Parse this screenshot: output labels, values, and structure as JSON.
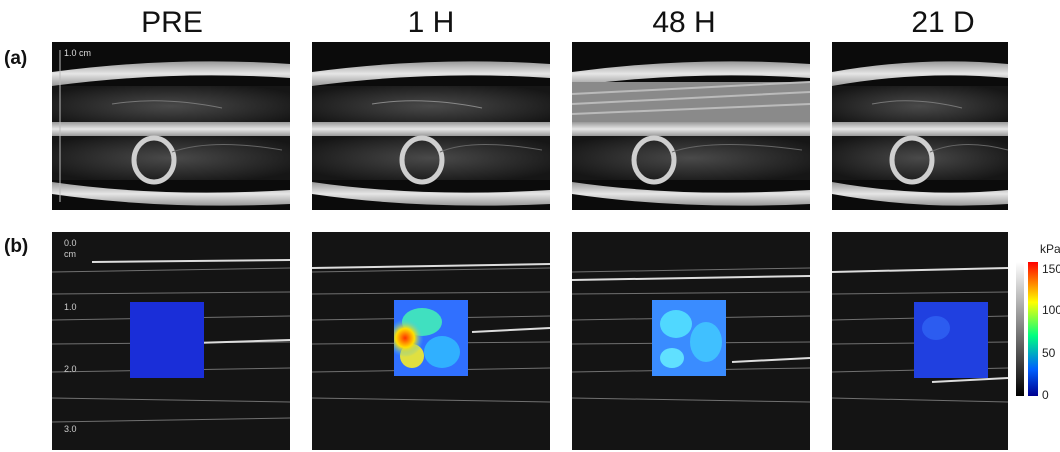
{
  "columns": [
    "PRE",
    "1 H",
    "48 H",
    "21 D"
  ],
  "rows": {
    "a": {
      "label": "(a)",
      "scale_label": "1.0 cm"
    },
    "b": {
      "label": "(b)",
      "depth_unit": "cm",
      "depth_ticks": [
        "0.0",
        "1.0",
        "2.0",
        "3.0"
      ]
    }
  },
  "colorbar": {
    "unit": "kPa",
    "ticks": [
      "150",
      "100",
      "50",
      "0"
    ],
    "colors": [
      "#ff0000",
      "#ffff00",
      "#00ff80",
      "#0060ff",
      "#000090"
    ]
  }
}
